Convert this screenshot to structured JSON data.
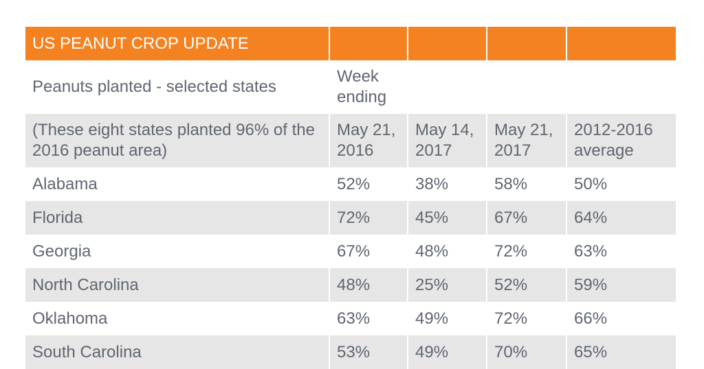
{
  "chart_data": {
    "type": "table",
    "title": "US PEANUT CROP UPDATE",
    "subtitle": "Peanuts planted - selected states",
    "week_label": "Week ending",
    "note": "(These eight states planted 96% of the 2016 peanut area)",
    "columns": [
      "May 21, 2016",
      "May 14, 2017",
      "May 21, 2017",
      "2012-2016 average"
    ],
    "rows": [
      {
        "state": "Alabama",
        "values": [
          "52%",
          "38%",
          "58%",
          "50%"
        ]
      },
      {
        "state": "Florida",
        "values": [
          "72%",
          "45%",
          "67%",
          "64%"
        ]
      },
      {
        "state": "Georgia",
        "values": [
          "67%",
          "48%",
          "72%",
          "63%"
        ]
      },
      {
        "state": "North Carolina",
        "values": [
          "48%",
          "25%",
          "52%",
          "59%"
        ]
      },
      {
        "state": "Oklahoma",
        "values": [
          "63%",
          "49%",
          "72%",
          "66%"
        ]
      },
      {
        "state": "South Carolina",
        "values": [
          "53%",
          "49%",
          "70%",
          "65%"
        ]
      }
    ]
  },
  "colors": {
    "header_bg": "#f58220",
    "header_text": "#ffffff",
    "stripe_bg": "#e6e6e6",
    "text": "#5f6670"
  }
}
